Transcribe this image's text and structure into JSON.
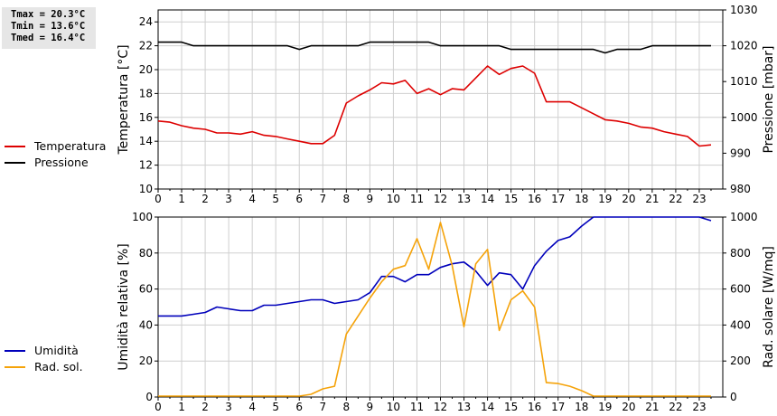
{
  "stats": {
    "tmax": "Tmax = 20.3°C",
    "tmin": "Tmin = 13.6°C",
    "tmed": "Tmed = 16.4°C"
  },
  "colors": {
    "temperatura": "#dd0000",
    "pressione": "#000000",
    "umidita": "#0000bb",
    "radsol": "#f5a30a"
  },
  "chart_data": [
    {
      "type": "line",
      "xlabel": "",
      "xticks": [
        "0",
        "1",
        "2",
        "3",
        "4",
        "5",
        "6",
        "7",
        "8",
        "9",
        "10",
        "11",
        "12",
        "13",
        "14",
        "15",
        "16",
        "17",
        "18",
        "19",
        "20",
        "21",
        "22",
        "23"
      ],
      "xlim": [
        0,
        24
      ],
      "ylabel": "Temperatura [°C]",
      "ylim": [
        10,
        25
      ],
      "yticks": [
        "10",
        "12",
        "14",
        "16",
        "18",
        "20",
        "22",
        "24"
      ],
      "y2label": "Pressione [mbar]",
      "y2lim": [
        980,
        1030
      ],
      "y2ticks": [
        "980",
        "990",
        "1000",
        "1010",
        "1020",
        "1030"
      ],
      "grid": true,
      "legend_position": "left",
      "series": [
        {
          "name": "Temperatura",
          "axis": "left",
          "x": [
            0,
            0.5,
            1,
            1.5,
            2,
            2.5,
            3,
            3.5,
            4,
            4.5,
            5,
            5.5,
            6,
            6.5,
            7,
            7.5,
            8,
            8.5,
            9,
            9.5,
            10,
            10.5,
            11,
            11.5,
            12,
            12.5,
            13,
            13.5,
            14,
            14.5,
            15,
            15.5,
            16,
            16.5,
            17,
            17.5,
            18,
            18.5,
            19,
            19.5,
            20,
            20.5,
            21,
            21.5,
            22,
            22.5,
            23,
            23.5
          ],
          "y": [
            15.7,
            15.6,
            15.3,
            15.1,
            15.0,
            14.7,
            14.7,
            14.6,
            14.8,
            14.5,
            14.4,
            14.2,
            14.0,
            13.8,
            13.8,
            14.5,
            17.2,
            17.8,
            18.3,
            18.9,
            18.8,
            19.1,
            18.0,
            18.4,
            17.9,
            18.4,
            18.3,
            19.3,
            20.3,
            19.6,
            20.1,
            20.3,
            19.7,
            17.3,
            17.3,
            17.3,
            16.8,
            16.3,
            15.8,
            15.7,
            15.5,
            15.2,
            15.1,
            14.8,
            14.6,
            14.4,
            13.6,
            13.7
          ]
        },
        {
          "name": "Pressione",
          "axis": "right",
          "x": [
            0,
            0.5,
            1,
            1.5,
            2,
            2.5,
            3,
            3.5,
            4,
            4.5,
            5,
            5.5,
            6,
            6.5,
            7,
            7.5,
            8,
            8.5,
            9,
            9.5,
            10,
            10.5,
            11,
            11.5,
            12,
            12.5,
            13,
            13.5,
            14,
            14.5,
            15,
            15.5,
            16,
            16.5,
            17,
            17.5,
            18,
            18.5,
            19,
            19.5,
            20,
            20.5,
            21,
            21.5,
            22,
            22.5,
            23,
            23.5
          ],
          "y": [
            1021,
            1021,
            1021,
            1020,
            1020,
            1020,
            1020,
            1020,
            1020,
            1020,
            1020,
            1020,
            1019,
            1020,
            1020,
            1020,
            1020,
            1020,
            1021,
            1021,
            1021,
            1021,
            1021,
            1021,
            1020,
            1020,
            1020,
            1020,
            1020,
            1020,
            1019,
            1019,
            1019,
            1019,
            1019,
            1019,
            1019,
            1019,
            1018,
            1019,
            1019,
            1019,
            1020,
            1020,
            1020,
            1020,
            1020,
            1020
          ]
        }
      ]
    },
    {
      "type": "line",
      "xlabel": "",
      "xticks": [
        "0",
        "1",
        "2",
        "3",
        "4",
        "5",
        "6",
        "7",
        "8",
        "9",
        "10",
        "11",
        "12",
        "13",
        "14",
        "15",
        "16",
        "17",
        "18",
        "19",
        "20",
        "21",
        "22",
        "23"
      ],
      "xlim": [
        0,
        24
      ],
      "ylabel": "Umidità relativa [%]",
      "ylim": [
        0,
        100
      ],
      "yticks": [
        "0",
        "20",
        "40",
        "60",
        "80",
        "100"
      ],
      "y2label": "Rad. solare [W/mq]",
      "y2lim": [
        0,
        1000
      ],
      "y2ticks": [
        "0",
        "200",
        "400",
        "600",
        "800",
        "1000"
      ],
      "grid": true,
      "legend_position": "left",
      "series": [
        {
          "name": "Umidità",
          "axis": "left",
          "x": [
            0,
            0.5,
            1,
            1.5,
            2,
            2.5,
            3,
            3.5,
            4,
            4.5,
            5,
            5.5,
            6,
            6.5,
            7,
            7.5,
            8,
            8.5,
            9,
            9.5,
            10,
            10.5,
            11,
            11.5,
            12,
            12.5,
            13,
            13.5,
            14,
            14.5,
            15,
            15.5,
            16,
            16.5,
            17,
            17.5,
            18,
            18.5,
            19,
            19.5,
            20,
            20.5,
            21,
            21.5,
            22,
            22.5,
            23,
            23.5
          ],
          "y": [
            45,
            45,
            45,
            46,
            47,
            50,
            49,
            48,
            48,
            51,
            51,
            52,
            53,
            54,
            54,
            52,
            53,
            54,
            58,
            67,
            67,
            64,
            68,
            68,
            72,
            74,
            75,
            70,
            62,
            69,
            68,
            60,
            73,
            81,
            87,
            89,
            95,
            100,
            100,
            100,
            100,
            100,
            100,
            100,
            100,
            100,
            100,
            98
          ]
        },
        {
          "name": "Rad. sol.",
          "axis": "right",
          "x": [
            0,
            0.5,
            1,
            1.5,
            2,
            2.5,
            3,
            3.5,
            4,
            4.5,
            5,
            5.5,
            6,
            6.5,
            7,
            7.5,
            8,
            8.5,
            9,
            9.5,
            10,
            10.5,
            11,
            11.5,
            12,
            12.5,
            13,
            13.5,
            14,
            14.5,
            15,
            15.5,
            16,
            16.5,
            17,
            17.5,
            18,
            18.5,
            19,
            19.5,
            20,
            20.5,
            21,
            21.5,
            22,
            22.5,
            23,
            23.5
          ],
          "y": [
            5,
            5,
            5,
            5,
            5,
            5,
            5,
            5,
            5,
            5,
            5,
            5,
            5,
            15,
            45,
            60,
            350,
            450,
            550,
            640,
            710,
            730,
            880,
            710,
            970,
            730,
            390,
            740,
            820,
            370,
            540,
            590,
            500,
            80,
            75,
            60,
            35,
            5,
            5,
            5,
            5,
            5,
            5,
            5,
            5,
            5,
            5,
            5
          ]
        }
      ]
    }
  ]
}
